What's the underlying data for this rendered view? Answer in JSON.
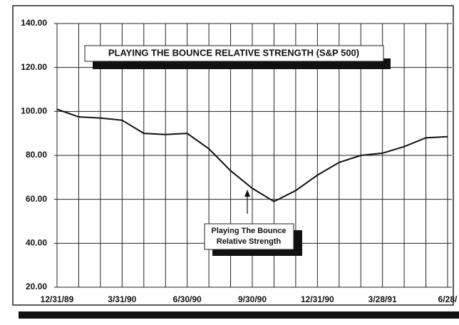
{
  "chart_data": {
    "type": "line",
    "title": "PLAYING THE BOUNCE RELATIVE STRENGTH (S&P 500)",
    "annotation": [
      "Playing The Bounce",
      "Relative Strength"
    ],
    "categories": [
      "12/31/89",
      null,
      null,
      "3/31/90",
      null,
      null,
      "6/30/90",
      null,
      null,
      "9/30/90",
      null,
      null,
      "12/31/90",
      null,
      null,
      "3/28/91",
      null,
      null,
      "6/28/"
    ],
    "series": [
      {
        "name": "Playing The Bounce Relative Strength",
        "color": "#111111",
        "values": [
          101,
          97.5,
          97,
          96,
          90,
          89.5,
          90,
          83,
          73,
          65,
          59,
          64,
          71,
          76.8,
          80,
          81,
          84,
          88,
          88.5
        ]
      }
    ],
    "ylim": [
      20,
      140
    ],
    "yticks": [
      {
        "value": 20,
        "label": "20.00"
      },
      {
        "value": 40,
        "label": "40.00"
      },
      {
        "value": 60,
        "label": "60.00"
      },
      {
        "value": 80,
        "label": "80.00"
      },
      {
        "value": 100,
        "label": "100.00"
      },
      {
        "value": 120,
        "label": "120.00"
      },
      {
        "value": 140,
        "label": "140.00"
      }
    ],
    "grid": true
  }
}
